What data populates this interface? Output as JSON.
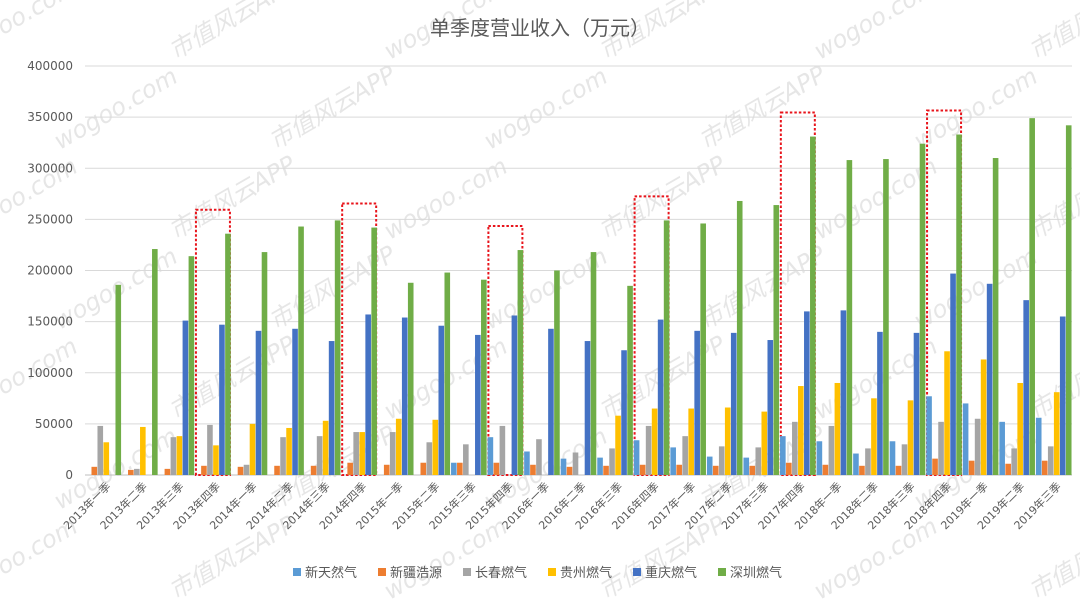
{
  "chart_data": {
    "type": "bar",
    "title": "单季度营业收入（万元）",
    "xlabel": "",
    "ylabel": "",
    "ylim": [
      0,
      400000
    ],
    "yticks": [
      0,
      50000,
      100000,
      150000,
      200000,
      250000,
      300000,
      350000,
      400000
    ],
    "grid": true,
    "legend_position": "bottom",
    "categories": [
      "2013年一季",
      "2013年二季",
      "2013年三季",
      "2013年四季",
      "2014年一季",
      "2014年二季",
      "2014年三季",
      "2014年四季",
      "2015年一季",
      "2015年二季",
      "2015年三季",
      "2015年四季",
      "2016年一季",
      "2016年二季",
      "2016年三季",
      "2016年四季",
      "2017年一季",
      "2017年二季",
      "2017年三季",
      "2017年四季",
      "2018年一季",
      "2018年二季",
      "2018年三季",
      "2018年四季",
      "2019年一季",
      "2019年二季",
      "2019年三季"
    ],
    "highlighted_categories": [
      "2013年四季",
      "2014年四季",
      "2015年四季",
      "2016年四季",
      "2017年四季",
      "2018年四季"
    ],
    "series": [
      {
        "name": "新天然气",
        "color": "#5b9bd5",
        "values": [
          0,
          0,
          0,
          0,
          0,
          0,
          0,
          0,
          0,
          0,
          12000,
          37000,
          23000,
          16000,
          17000,
          34000,
          27000,
          18000,
          17000,
          38000,
          33000,
          21000,
          33000,
          77000,
          70000,
          52000,
          56000
        ]
      },
      {
        "name": "新疆浩源",
        "color": "#ed7d31",
        "values": [
          8000,
          5000,
          6000,
          9000,
          8000,
          9000,
          9000,
          12000,
          10000,
          12000,
          12000,
          12000,
          10000,
          8000,
          9000,
          10000,
          10000,
          9000,
          9000,
          12000,
          10000,
          9000,
          9000,
          16000,
          14000,
          11000,
          14000
        ]
      },
      {
        "name": "长春燃气",
        "color": "#a5a5a5",
        "values": [
          48000,
          6000,
          37000,
          49000,
          10000,
          37000,
          38000,
          42000,
          42000,
          32000,
          30000,
          48000,
          35000,
          22000,
          26000,
          48000,
          38000,
          28000,
          27000,
          52000,
          48000,
          26000,
          30000,
          52000,
          55000,
          26000,
          28000
        ]
      },
      {
        "name": "贵州燃气",
        "color": "#ffc000",
        "values": [
          32000,
          47000,
          38000,
          29000,
          50000,
          46000,
          53000,
          42000,
          55000,
          54000,
          0,
          0,
          0,
          0,
          58000,
          65000,
          65000,
          66000,
          62000,
          87000,
          90000,
          75000,
          73000,
          121000,
          113000,
          90000,
          81000
        ]
      },
      {
        "name": "重庆燃气",
        "color": "#4472c4",
        "values": [
          0,
          0,
          151000,
          147000,
          141000,
          143000,
          131000,
          157000,
          154000,
          146000,
          137000,
          156000,
          143000,
          131000,
          122000,
          152000,
          141000,
          139000,
          132000,
          160000,
          161000,
          140000,
          139000,
          197000,
          187000,
          171000,
          155000
        ]
      },
      {
        "name": "深圳燃气",
        "color": "#70ad47",
        "values": [
          186000,
          221000,
          214000,
          236000,
          218000,
          243000,
          249000,
          242000,
          188000,
          198000,
          191000,
          220000,
          200000,
          218000,
          185000,
          249000,
          246000,
          268000,
          264000,
          331000,
          308000,
          309000,
          324000,
          333000,
          310000,
          349000,
          342000
        ]
      }
    ],
    "watermarks": [
      "wogoo.com",
      "市值风云APP"
    ]
  }
}
